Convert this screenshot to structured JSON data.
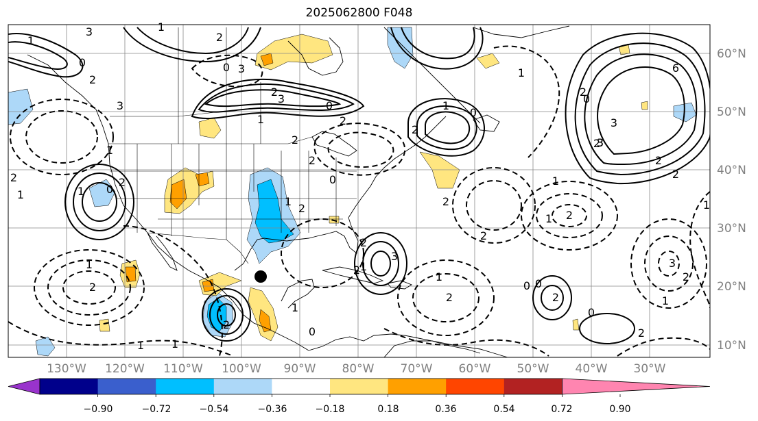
{
  "title": "2025062800 F048",
  "lat_labels": [
    "60°N",
    "50°N",
    "40°N",
    "30°N",
    "20°N",
    "10°N"
  ],
  "lon_labels": [
    "130°W",
    "120°W",
    "110°W",
    "100°W",
    "90°W",
    "80°W",
    "70°W",
    "60°W",
    "50°W",
    "40°W",
    "30°W"
  ],
  "colorbar": {
    "colors": [
      "#9933cc",
      "#00008b",
      "#3a5fcd",
      "#00bfff",
      "#add8f8",
      "#ffffff",
      "#ffe680",
      "#ffa000",
      "#ff4500",
      "#b22222",
      "#ff85b0"
    ],
    "tick_labels": [
      "−0.90",
      "−0.72",
      "−0.54",
      "−0.36",
      "−0.18",
      "0.18",
      "0.36",
      "0.54",
      "0.72",
      "0.90"
    ]
  },
  "contour_labels": [
    "1",
    "0",
    "2",
    "3",
    "1",
    "2",
    "0",
    "3",
    "2",
    "1",
    "0",
    "2",
    "1",
    "3",
    "2",
    "1",
    "0",
    "1",
    "2",
    "2",
    "3",
    "2",
    "1",
    "0",
    "1",
    "2",
    "0",
    "2",
    "3",
    "2",
    "2",
    "1",
    "3",
    "1",
    "1",
    "2",
    "0",
    "2",
    "1",
    "2",
    "3",
    "2",
    "1",
    "2",
    "1",
    "0",
    "1",
    "0",
    "2",
    "2",
    "2",
    "1",
    "2",
    "1",
    "1",
    "0",
    "0",
    "2",
    "1",
    "3",
    "2",
    "6",
    "3",
    "2",
    "2"
  ],
  "marker": {
    "lon": -97.5,
    "lat": 21.8
  }
}
